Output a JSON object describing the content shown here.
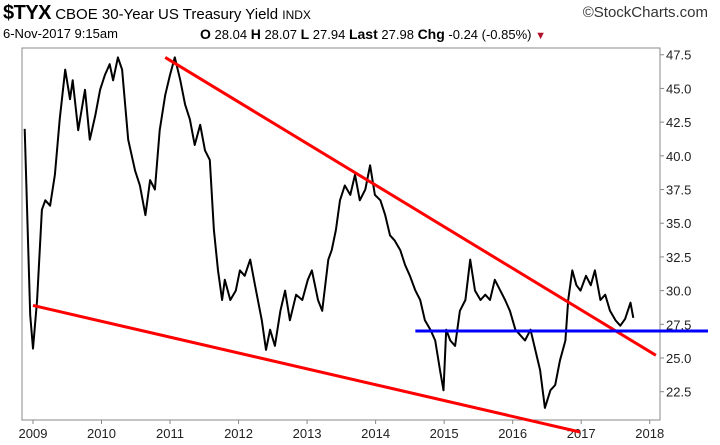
{
  "header": {
    "symbol": "$TYX",
    "name": "CBOE 30-Year US Treasury Yield",
    "exchange": "INDX",
    "brand": "©StockCharts.com",
    "datetime": "6-Nov-2017 9:15am",
    "open_label": "O",
    "open": "28.04",
    "high_label": "H",
    "high": "28.07",
    "low_label": "L",
    "low": "27.94",
    "last_label": "Last",
    "last": "27.98",
    "chg_label": "Chg",
    "chg": "-0.24 (-0.85%)",
    "chg_arrow": "▼"
  },
  "chart_data": {
    "type": "line",
    "title": "$TYX CBOE 30-Year US Treasury Yield INDX",
    "xlabel": "",
    "ylabel": "",
    "xlim": [
      2008.84,
      2018.15
    ],
    "ylim": [
      20.4,
      48.0
    ],
    "x_ticks": [
      2009,
      2010,
      2011,
      2012,
      2013,
      2014,
      2015,
      2016,
      2017,
      2018
    ],
    "x_tick_labels": [
      "2009",
      "2010",
      "2011",
      "2012",
      "2013",
      "2014",
      "2015",
      "2016",
      "2017",
      "2018"
    ],
    "y_ticks": [
      22.5,
      25.0,
      27.5,
      30.0,
      32.5,
      35.0,
      37.5,
      40.0,
      42.5,
      45.0,
      47.5
    ],
    "y_tick_labels": [
      "22.5",
      "25.0",
      "27.5",
      "30.0",
      "32.5",
      "35.0",
      "37.5",
      "40.0",
      "42.5",
      "45.0",
      "47.5"
    ],
    "grid": false,
    "series": [
      {
        "name": "$TYX",
        "color": "#000000",
        "points": [
          [
            2008.88,
            42.0
          ],
          [
            2008.96,
            28.2
          ],
          [
            2009.0,
            25.7
          ],
          [
            2009.06,
            29.3
          ],
          [
            2009.13,
            36.0
          ],
          [
            2009.18,
            36.7
          ],
          [
            2009.25,
            36.3
          ],
          [
            2009.32,
            38.6
          ],
          [
            2009.39,
            42.7
          ],
          [
            2009.47,
            46.4
          ],
          [
            2009.54,
            44.2
          ],
          [
            2009.58,
            45.6
          ],
          [
            2009.66,
            41.9
          ],
          [
            2009.76,
            44.9
          ],
          [
            2009.83,
            41.2
          ],
          [
            2009.91,
            43.0
          ],
          [
            2009.98,
            44.9
          ],
          [
            2010.05,
            46.0
          ],
          [
            2010.12,
            46.8
          ],
          [
            2010.17,
            45.6
          ],
          [
            2010.24,
            47.3
          ],
          [
            2010.3,
            46.4
          ],
          [
            2010.39,
            41.2
          ],
          [
            2010.49,
            38.9
          ],
          [
            2010.56,
            37.8
          ],
          [
            2010.64,
            35.6
          ],
          [
            2010.71,
            38.2
          ],
          [
            2010.78,
            37.5
          ],
          [
            2010.85,
            41.9
          ],
          [
            2010.93,
            44.5
          ],
          [
            2011.0,
            46.0
          ],
          [
            2011.07,
            47.3
          ],
          [
            2011.15,
            45.6
          ],
          [
            2011.22,
            43.8
          ],
          [
            2011.29,
            42.7
          ],
          [
            2011.36,
            40.8
          ],
          [
            2011.44,
            42.3
          ],
          [
            2011.51,
            40.4
          ],
          [
            2011.58,
            39.7
          ],
          [
            2011.64,
            34.5
          ],
          [
            2011.7,
            31.5
          ],
          [
            2011.76,
            29.3
          ],
          [
            2011.8,
            30.8
          ],
          [
            2011.88,
            29.3
          ],
          [
            2011.96,
            30.0
          ],
          [
            2012.02,
            31.5
          ],
          [
            2012.09,
            31.1
          ],
          [
            2012.17,
            32.3
          ],
          [
            2012.24,
            30.4
          ],
          [
            2012.34,
            27.8
          ],
          [
            2012.4,
            25.6
          ],
          [
            2012.46,
            27.1
          ],
          [
            2012.53,
            25.9
          ],
          [
            2012.61,
            28.5
          ],
          [
            2012.68,
            30.0
          ],
          [
            2012.75,
            27.8
          ],
          [
            2012.84,
            29.7
          ],
          [
            2012.93,
            29.3
          ],
          [
            2013.01,
            30.8
          ],
          [
            2013.07,
            31.5
          ],
          [
            2013.16,
            29.3
          ],
          [
            2013.22,
            28.5
          ],
          [
            2013.31,
            32.3
          ],
          [
            2013.36,
            33.0
          ],
          [
            2013.42,
            34.5
          ],
          [
            2013.48,
            36.7
          ],
          [
            2013.55,
            37.8
          ],
          [
            2013.63,
            37.1
          ],
          [
            2013.7,
            38.6
          ],
          [
            2013.77,
            36.7
          ],
          [
            2013.85,
            37.5
          ],
          [
            2013.92,
            39.3
          ],
          [
            2013.99,
            37.1
          ],
          [
            2014.07,
            36.7
          ],
          [
            2014.14,
            35.6
          ],
          [
            2014.21,
            34.1
          ],
          [
            2014.28,
            33.7
          ],
          [
            2014.36,
            33.0
          ],
          [
            2014.43,
            31.9
          ],
          [
            2014.5,
            31.1
          ],
          [
            2014.58,
            30.0
          ],
          [
            2014.65,
            29.3
          ],
          [
            2014.72,
            27.8
          ],
          [
            2014.8,
            27.1
          ],
          [
            2014.87,
            26.3
          ],
          [
            2014.94,
            24.1
          ],
          [
            2014.99,
            22.6
          ],
          [
            2015.03,
            27.1
          ],
          [
            2015.09,
            26.3
          ],
          [
            2015.16,
            25.9
          ],
          [
            2015.23,
            28.5
          ],
          [
            2015.31,
            29.3
          ],
          [
            2015.38,
            32.3
          ],
          [
            2015.45,
            30.0
          ],
          [
            2015.53,
            29.3
          ],
          [
            2015.6,
            29.7
          ],
          [
            2015.67,
            29.3
          ],
          [
            2015.74,
            30.8
          ],
          [
            2015.82,
            30.0
          ],
          [
            2015.89,
            29.3
          ],
          [
            2015.96,
            28.5
          ],
          [
            2016.04,
            27.1
          ],
          [
            2016.11,
            26.7
          ],
          [
            2016.18,
            26.3
          ],
          [
            2016.26,
            27.1
          ],
          [
            2016.33,
            25.6
          ],
          [
            2016.4,
            24.1
          ],
          [
            2016.47,
            21.3
          ],
          [
            2016.55,
            22.6
          ],
          [
            2016.62,
            23.0
          ],
          [
            2016.69,
            24.8
          ],
          [
            2016.77,
            26.3
          ],
          [
            2016.81,
            29.3
          ],
          [
            2016.87,
            31.5
          ],
          [
            2016.93,
            30.4
          ],
          [
            2016.99,
            30.0
          ],
          [
            2017.07,
            31.1
          ],
          [
            2017.14,
            30.4
          ],
          [
            2017.2,
            31.5
          ],
          [
            2017.28,
            29.3
          ],
          [
            2017.35,
            29.7
          ],
          [
            2017.42,
            28.5
          ],
          [
            2017.5,
            27.8
          ],
          [
            2017.57,
            27.4
          ],
          [
            2017.64,
            27.9
          ],
          [
            2017.72,
            29.1
          ],
          [
            2017.76,
            27.98
          ]
        ]
      }
    ],
    "annotations": [
      {
        "type": "trendline",
        "name": "upper-resistance",
        "color": "#ff0000",
        "from": [
          2010.93,
          47.3
        ],
        "to": [
          2018.09,
          25.2
        ]
      },
      {
        "type": "trendline",
        "name": "lower-support",
        "color": "#ff0000",
        "from": [
          2009.0,
          28.9
        ],
        "to": [
          2016.99,
          19.5
        ]
      },
      {
        "type": "horizontal",
        "name": "support-level",
        "color": "#0000ff",
        "value": 27.0,
        "from": 2014.58
      }
    ]
  }
}
